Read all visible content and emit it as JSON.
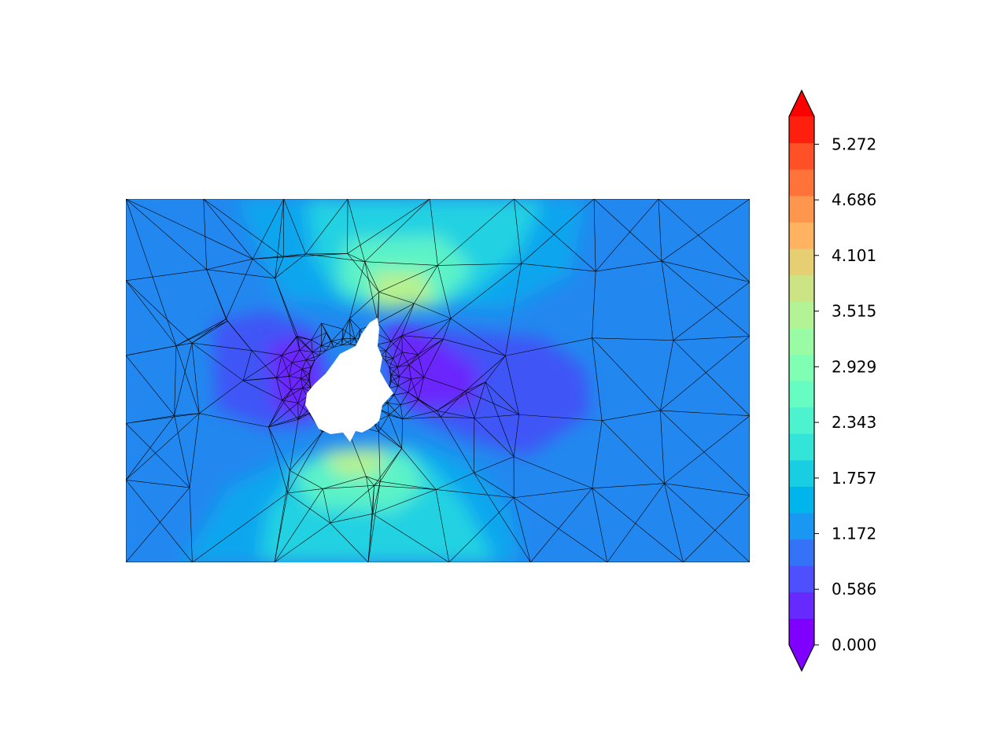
{
  "chart_data": {
    "type": "heatmap",
    "title": "",
    "xlabel": "",
    "ylabel": "",
    "grid": false,
    "plot_kind": "filled contour on triangular mesh (tricontourf + triplot)",
    "colormap": "rainbow",
    "mesh_edge_color": "#000000",
    "hole": "irregular void near left-center of domain (no data)",
    "colorbar": {
      "position": "right",
      "extend": "both",
      "min": 0.0,
      "max": 5.565,
      "tick_values": [
        0.0,
        0.586,
        1.172,
        1.757,
        2.343,
        2.929,
        3.515,
        4.101,
        4.686,
        5.272
      ],
      "tick_labels": [
        "0.000",
        "0.586",
        "1.172",
        "1.757",
        "2.343",
        "2.929",
        "3.515",
        "4.101",
        "4.686",
        "5.272"
      ],
      "level_colors": [
        "#7f00ff",
        "#6629fe",
        "#4d50fc",
        "#3473f8",
        "#1a96f3",
        "#00b5eb",
        "#19cee3",
        "#33e4d9",
        "#4df3ce",
        "#66fcc2",
        "#80ffb4",
        "#99fca4",
        "#b3f396",
        "#cce483",
        "#e6ce73",
        "#ffb360",
        "#ff964e",
        "#ff733b",
        "#ff5027",
        "#ff1f0f"
      ],
      "extend_low_color": "#7f00ff",
      "extend_high_color": "#ff0000"
    },
    "field_summary": {
      "background_value_range": [
        1.0,
        1.3
      ],
      "max_near_hole_top_and_bottom": 3.3,
      "min_near_hole_left_and_right": 0.0
    }
  }
}
